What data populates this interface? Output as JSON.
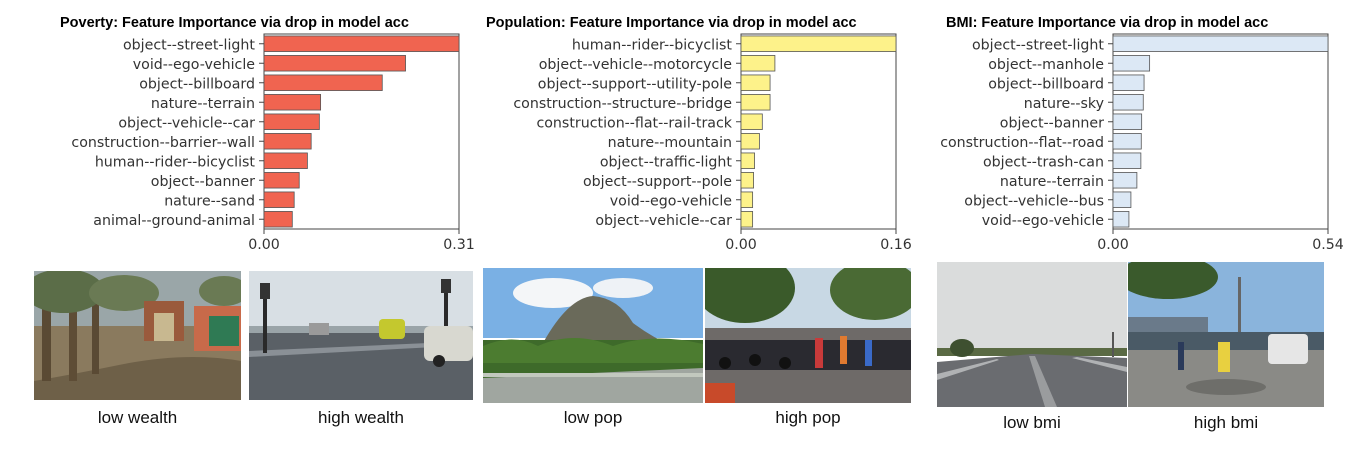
{
  "chart_data": [
    {
      "type": "bar",
      "orientation": "horizontal",
      "title": "Poverty: Feature Importance via drop in model acc",
      "color": "#f06450",
      "categories": [
        "object--street-light",
        "void--ego-vehicle",
        "object--billboard",
        "nature--terrain",
        "object--vehicle--car",
        "construction--barrier--wall",
        "human--rider--bicyclist",
        "object--banner",
        "nature--sand",
        "animal--ground-animal"
      ],
      "values": [
        0.31,
        0.225,
        0.188,
        0.09,
        0.088,
        0.075,
        0.069,
        0.056,
        0.048,
        0.045
      ],
      "xlim": [
        0,
        0.31
      ],
      "xticks": [
        "0.00",
        "0.31"
      ]
    },
    {
      "type": "bar",
      "orientation": "horizontal",
      "title": "Population: Feature Importance via drop in model acc",
      "color": "#fdf28a",
      "categories": [
        "human--rider--bicyclist",
        "object--vehicle--motorcycle",
        "object--support--utility-pole",
        "construction--structure--bridge",
        "construction--flat--rail-track",
        "nature--mountain",
        "object--traffic-light",
        "object--support--pole",
        "void--ego-vehicle",
        "object--vehicle--car"
      ],
      "values": [
        0.16,
        0.035,
        0.03,
        0.03,
        0.022,
        0.019,
        0.014,
        0.013,
        0.012,
        0.012
      ],
      "xlim": [
        0,
        0.16
      ],
      "xticks": [
        "0.00",
        "0.16"
      ]
    },
    {
      "type": "bar",
      "orientation": "horizontal",
      "title": "BMI: Feature Importance via drop in model acc",
      "color": "#dce8f5",
      "categories": [
        "object--street-light",
        "object--manhole",
        "object--billboard",
        "nature--sky",
        "object--banner",
        "construction--flat--road",
        "object--trash-can",
        "nature--terrain",
        "object--vehicle--bus",
        "void--ego-vehicle"
      ],
      "values": [
        0.54,
        0.092,
        0.078,
        0.076,
        0.072,
        0.071,
        0.07,
        0.06,
        0.045,
        0.04
      ],
      "xlim": [
        0,
        0.54
      ],
      "xticks": [
        "0.00",
        "0.54"
      ]
    }
  ],
  "captions": {
    "low_wealth": "low wealth",
    "high_wealth": "high wealth",
    "low_pop": "low pop",
    "high_pop": "high pop",
    "low_bmi": "low bmi",
    "high_bmi": "high bmi"
  }
}
